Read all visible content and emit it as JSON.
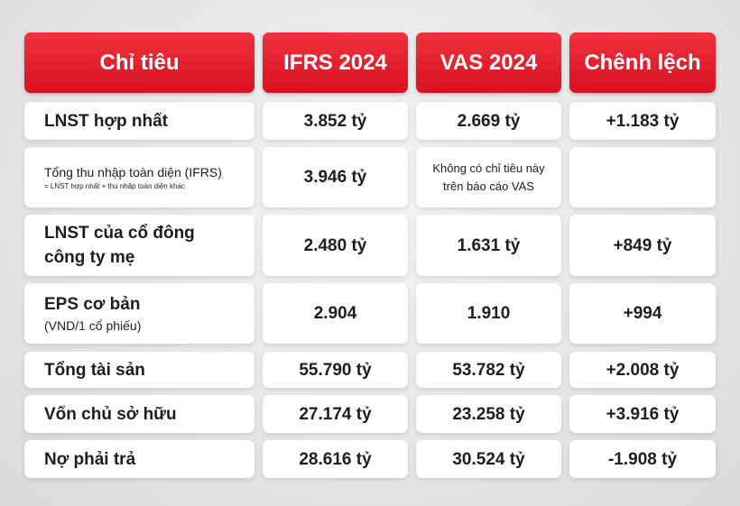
{
  "header": [
    "Chỉ tiêu",
    "IFRS 2024",
    "VAS 2024",
    "Chênh lệch"
  ],
  "rows": [
    {
      "label": [
        "LNST hợp nhất"
      ],
      "ifrs": "3.852 tỷ",
      "vas": [
        "2.669 tỷ"
      ],
      "diff": "+1.183 tỷ"
    },
    {
      "label": [
        "Tổng thu nhập toàn diện (IFRS)"
      ],
      "note": "= LNST hợp nhất + thu nhập toàn diện khác",
      "ifrs": "3.946 tỷ",
      "vas": [
        "Không có chỉ tiêu này",
        "trên báo cáo VAS"
      ],
      "diff": null
    },
    {
      "label": [
        "LNST của cổ đông",
        "công ty mẹ"
      ],
      "ifrs": "2.480 tỷ",
      "vas": [
        "1.631 tỷ"
      ],
      "diff": "+849 tỷ"
    },
    {
      "label": [
        "EPS cơ bản"
      ],
      "note": "(VND/1 cổ phiếu)",
      "ifrs": "2.904",
      "vas": [
        "1.910"
      ],
      "diff": "+994"
    },
    {
      "label": [
        "Tổng tài sản"
      ],
      "ifrs": "55.790 tỷ",
      "vas": [
        "53.782 tỷ"
      ],
      "diff": "+2.008 tỷ"
    },
    {
      "label": [
        "Vốn chủ sở hữu"
      ],
      "ifrs": "27.174 tỷ",
      "vas": [
        "23.258 tỷ"
      ],
      "diff": "+3.916 tỷ"
    },
    {
      "label": [
        "Nợ phải trả"
      ],
      "ifrs": "28.616 tỷ",
      "vas": [
        "30.524 tỷ"
      ],
      "diff": "-1.908 tỷ"
    }
  ]
}
